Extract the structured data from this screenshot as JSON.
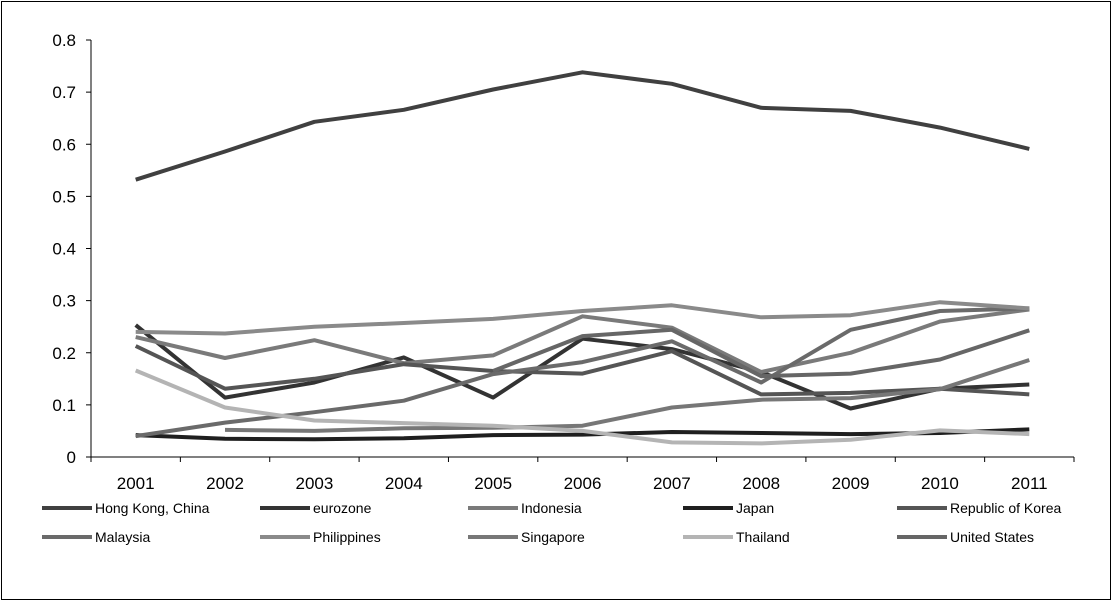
{
  "chart_data": {
    "type": "line",
    "title": "",
    "xlabel": "",
    "ylabel": "",
    "categories": [
      "2001",
      "2002",
      "2003",
      "2004",
      "2005",
      "2006",
      "2007",
      "2008",
      "2009",
      "2010",
      "2011"
    ],
    "ylim": [
      0,
      0.8
    ],
    "y_ticks": [
      "0",
      "0.1",
      "0.2",
      "0.3",
      "0.4",
      "0.5",
      "0.6",
      "0.7",
      "0.8"
    ],
    "grid": false,
    "legend_position": "bottom",
    "series": [
      {
        "name": "Hong Kong,  China",
        "color": "#404040",
        "values": [
          0.532,
          0.586,
          0.643,
          0.666,
          0.705,
          0.738,
          0.716,
          0.67,
          0.664,
          0.632,
          0.591
        ]
      },
      {
        "name": "eurozone",
        "color": "#333333",
        "values": [
          0.253,
          0.114,
          0.143,
          0.191,
          0.114,
          0.227,
          0.207,
          0.163,
          0.093,
          0.131,
          0.139
        ]
      },
      {
        "name": "Indonesia",
        "color": "#7a7a7a",
        "values": [
          0.23,
          0.19,
          0.224,
          0.18,
          0.195,
          0.27,
          0.248,
          0.163,
          0.2,
          0.26,
          0.283
        ]
      },
      {
        "name": "Japan",
        "color": "#1f1f1f",
        "values": [
          0.042,
          0.035,
          0.034,
          0.036,
          0.042,
          0.043,
          0.048,
          0.046,
          0.044,
          0.046,
          0.053
        ]
      },
      {
        "name": "Republic of Korea",
        "color": "#555555",
        "values": [
          0.213,
          0.131,
          0.15,
          0.178,
          0.165,
          0.16,
          0.203,
          0.12,
          0.123,
          0.131,
          0.12
        ]
      },
      {
        "name": "Malaysia",
        "color": "#6a6a6a",
        "values": [
          0.04,
          0.066,
          0.086,
          0.108,
          0.159,
          0.182,
          0.222,
          0.143,
          0.244,
          0.28,
          0.285
        ]
      },
      {
        "name": "Philippines",
        "color": "#8a8a8a",
        "values": [
          0.24,
          0.237,
          0.25,
          0.257,
          0.265,
          0.28,
          0.291,
          0.268,
          0.272,
          0.297,
          0.285
        ]
      },
      {
        "name": "Singapore",
        "color": "#777777",
        "values": [
          null,
          0.052,
          0.05,
          0.055,
          0.056,
          0.06,
          0.095,
          0.11,
          0.113,
          0.13,
          0.186
        ]
      },
      {
        "name": "Thailand",
        "color": "#b4b4b4",
        "values": [
          0.166,
          0.095,
          0.07,
          0.065,
          0.06,
          0.05,
          0.028,
          0.026,
          0.033,
          0.051,
          0.044
        ]
      },
      {
        "name": "United States",
        "color": "#666666",
        "values": [
          null,
          null,
          null,
          null,
          0.165,
          0.232,
          0.244,
          0.155,
          0.16,
          0.187,
          0.243
        ]
      }
    ]
  }
}
